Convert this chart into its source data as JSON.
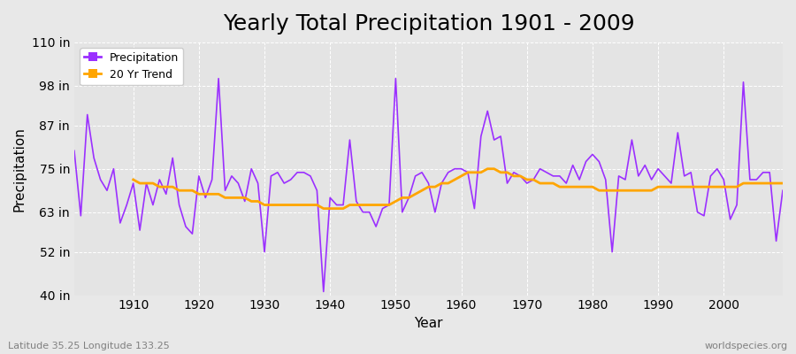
{
  "title": "Yearly Total Precipitation 1901 - 2009",
  "xlabel": "Year",
  "ylabel": "Precipitation",
  "lat_lon_label": "Latitude 35.25 Longitude 133.25",
  "source_label": "worldspecies.org",
  "years": [
    1901,
    1902,
    1903,
    1904,
    1905,
    1906,
    1907,
    1908,
    1909,
    1910,
    1911,
    1912,
    1913,
    1914,
    1915,
    1916,
    1917,
    1918,
    1919,
    1920,
    1921,
    1922,
    1923,
    1924,
    1925,
    1926,
    1927,
    1928,
    1929,
    1930,
    1931,
    1932,
    1933,
    1934,
    1935,
    1936,
    1937,
    1938,
    1939,
    1940,
    1941,
    1942,
    1943,
    1944,
    1945,
    1946,
    1947,
    1948,
    1949,
    1950,
    1951,
    1952,
    1953,
    1954,
    1955,
    1956,
    1957,
    1958,
    1959,
    1960,
    1961,
    1962,
    1963,
    1964,
    1965,
    1966,
    1967,
    1968,
    1969,
    1970,
    1971,
    1972,
    1973,
    1974,
    1975,
    1976,
    1977,
    1978,
    1979,
    1980,
    1981,
    1982,
    1983,
    1984,
    1985,
    1986,
    1987,
    1988,
    1989,
    1990,
    1991,
    1992,
    1993,
    1994,
    1995,
    1996,
    1997,
    1998,
    1999,
    2000,
    2001,
    2002,
    2003,
    2004,
    2005,
    2006,
    2007,
    2008,
    2009
  ],
  "precip": [
    80,
    62,
    90,
    78,
    72,
    69,
    75,
    60,
    65,
    71,
    58,
    71,
    65,
    72,
    68,
    78,
    65,
    59,
    57,
    73,
    67,
    72,
    100,
    69,
    73,
    71,
    66,
    75,
    71,
    52,
    73,
    74,
    71,
    72,
    74,
    74,
    73,
    69,
    41,
    67,
    65,
    65,
    83,
    66,
    63,
    63,
    59,
    64,
    65,
    100,
    63,
    67,
    73,
    74,
    71,
    63,
    71,
    74,
    75,
    75,
    74,
    64,
    84,
    91,
    83,
    84,
    71,
    74,
    73,
    71,
    72,
    75,
    74,
    73,
    73,
    71,
    76,
    72,
    77,
    79,
    77,
    72,
    52,
    73,
    72,
    83,
    73,
    76,
    72,
    75,
    73,
    71,
    85,
    73,
    74,
    63,
    62,
    73,
    75,
    72,
    61,
    65,
    99,
    72,
    72,
    74,
    74,
    55,
    69
  ],
  "trend_years": [
    1910,
    1911,
    1912,
    1913,
    1914,
    1915,
    1916,
    1917,
    1918,
    1919,
    1920,
    1921,
    1922,
    1923,
    1924,
    1925,
    1926,
    1927,
    1928,
    1929,
    1930,
    1931,
    1932,
    1933,
    1934,
    1935,
    1936,
    1937,
    1938,
    1939,
    1940,
    1941,
    1942,
    1943,
    1944,
    1945,
    1946,
    1947,
    1948,
    1949,
    1950,
    1951,
    1952,
    1953,
    1954,
    1955,
    1956,
    1957,
    1958,
    1959,
    1960,
    1961,
    1962,
    1963,
    1964,
    1965,
    1966,
    1967,
    1968,
    1969,
    1970,
    1971,
    1972,
    1973,
    1974,
    1975,
    1976,
    1977,
    1978,
    1979,
    1980,
    1981,
    1982,
    1983,
    1984,
    1985,
    1986,
    1987,
    1988,
    1989,
    1990,
    1991,
    1992,
    1993,
    1994,
    1995,
    1996,
    1997,
    1998,
    1999,
    2000,
    2001,
    2002,
    2003,
    2004,
    2005,
    2006,
    2007,
    2008,
    2009
  ],
  "trend_vals": [
    72,
    71,
    71,
    71,
    70,
    70,
    70,
    69,
    69,
    69,
    68,
    68,
    68,
    68,
    67,
    67,
    67,
    67,
    66,
    66,
    65,
    65,
    65,
    65,
    65,
    65,
    65,
    65,
    65,
    64,
    64,
    64,
    64,
    65,
    65,
    65,
    65,
    65,
    65,
    65,
    66,
    67,
    67,
    68,
    69,
    70,
    70,
    71,
    71,
    72,
    73,
    74,
    74,
    74,
    75,
    75,
    74,
    74,
    73,
    73,
    72,
    72,
    71,
    71,
    71,
    70,
    70,
    70,
    70,
    70,
    70,
    69,
    69,
    69,
    69,
    69,
    69,
    69,
    69,
    69,
    70,
    70,
    70,
    70,
    70,
    70,
    70,
    70,
    70,
    70,
    70,
    70,
    70,
    71,
    71,
    71,
    71,
    71,
    71,
    71
  ],
  "precip_color": "#9B30FF",
  "trend_color": "#FFA500",
  "bg_color": "#E8E8E8",
  "plot_bg_color": "#E4E4E4",
  "grid_color": "#FFFFFF",
  "ylim": [
    40,
    110
  ],
  "ytick_values": [
    40,
    52,
    63,
    75,
    87,
    98,
    110
  ],
  "ytick_labels": [
    "40 in",
    "52 in",
    "63 in",
    "75 in",
    "87 in",
    "98 in",
    "110 in"
  ],
  "xtick_values": [
    1910,
    1920,
    1930,
    1940,
    1950,
    1960,
    1970,
    1980,
    1990,
    2000
  ],
  "title_fontsize": 18,
  "label_fontsize": 11,
  "tick_fontsize": 10,
  "legend_fontsize": 9
}
